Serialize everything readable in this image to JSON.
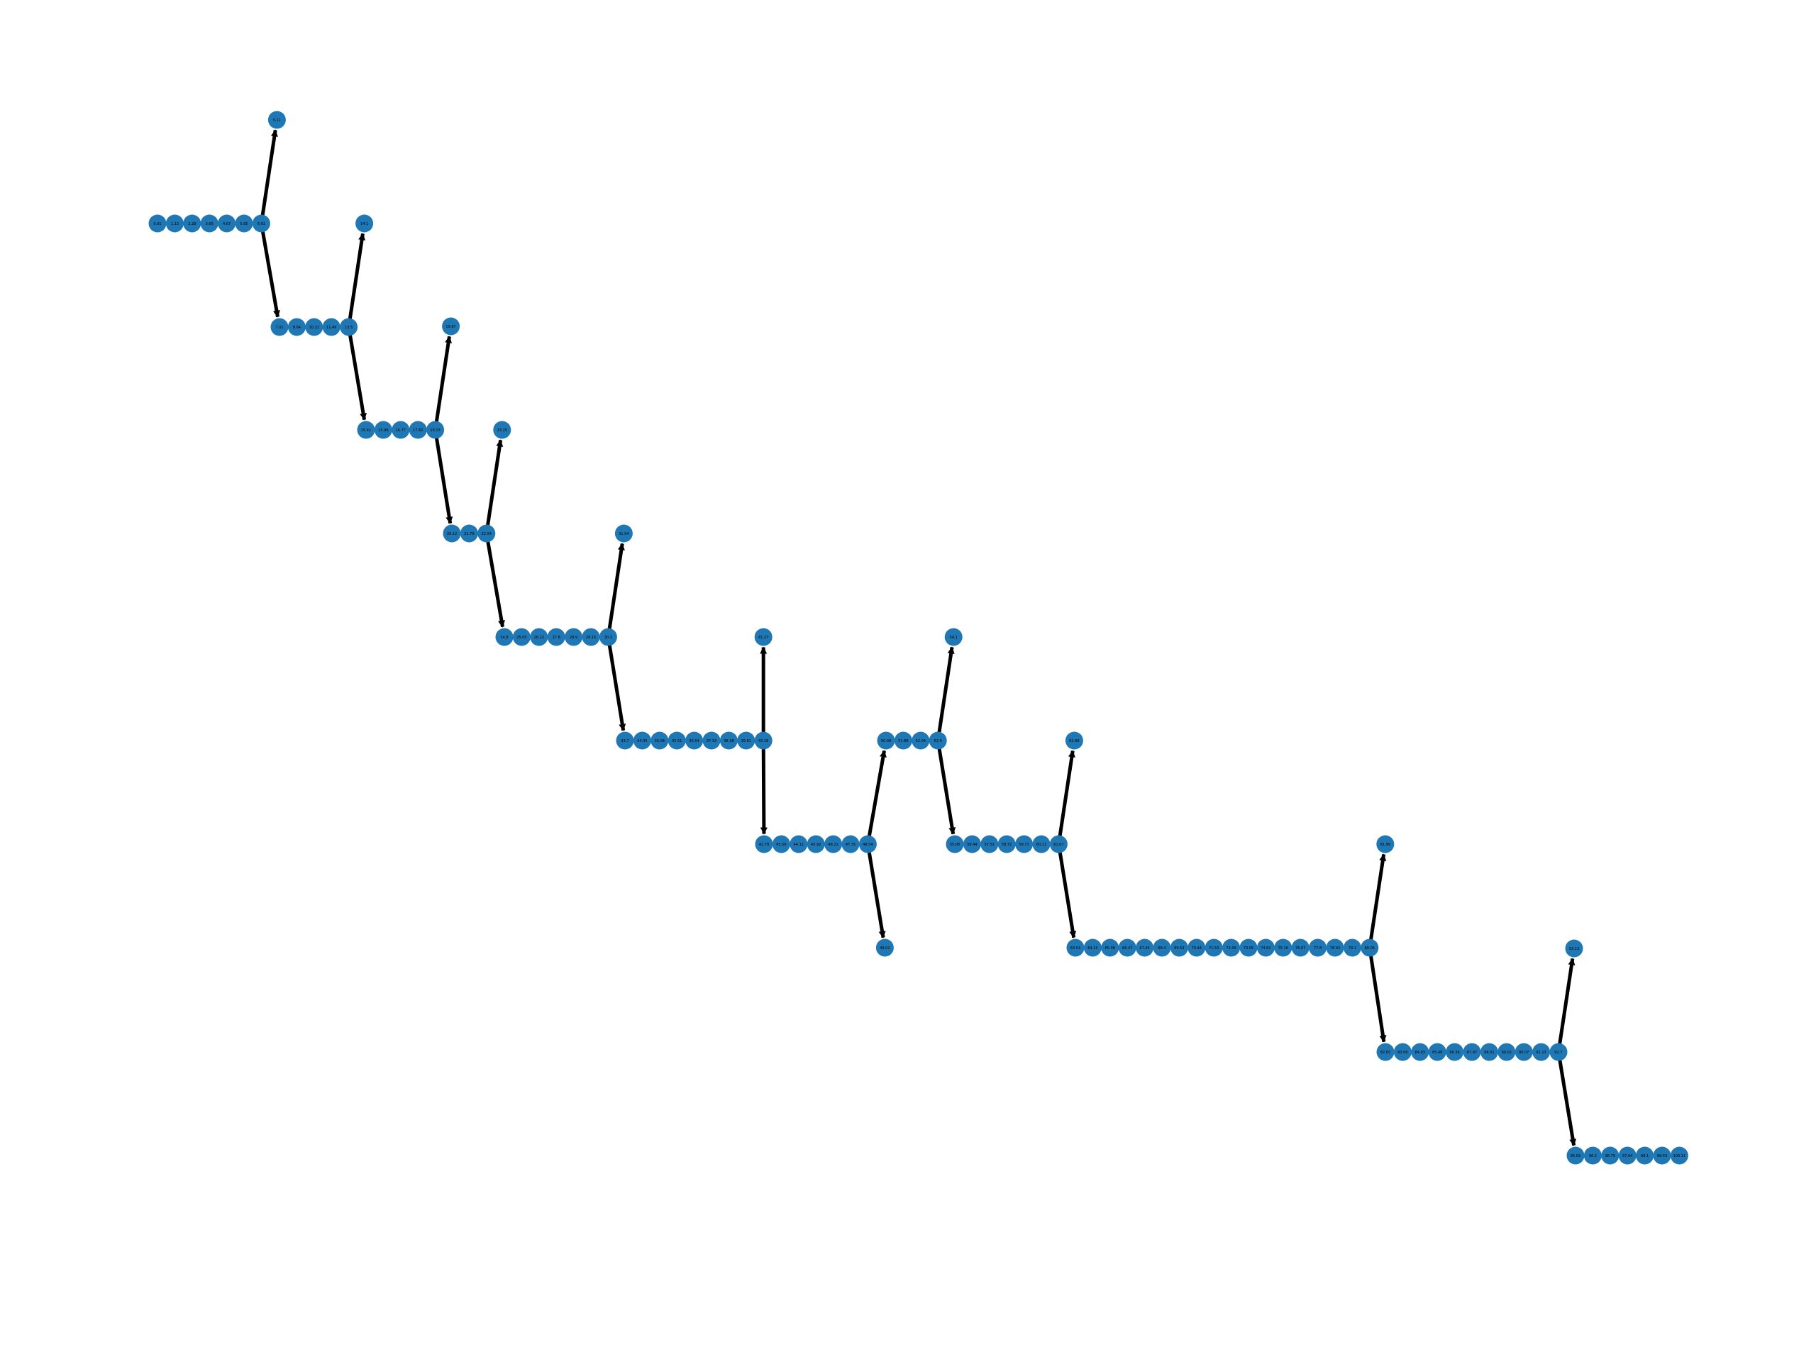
{
  "colors": {
    "node": "#1f77b4",
    "edge": "#000000",
    "background": "#ffffff"
  },
  "diagram": {
    "type": "directed graph",
    "groups": [
      {
        "id": "g1",
        "nodes": [
          "0.01",
          "1.13",
          "2.28",
          "3.65",
          "4.67",
          "5.85",
          "6.91"
        ],
        "up": "5.11",
        "down": "g2"
      },
      {
        "id": "g2",
        "nodes": [
          "7.01",
          "8.64",
          "10.22",
          "11.49",
          "13.5"
        ],
        "up": "14.1",
        "down": "g3"
      },
      {
        "id": "g3",
        "nodes": [
          "15.41",
          "15.96",
          "16.77",
          "17.82",
          "18.13"
        ],
        "up": "19.87",
        "down": "g4"
      },
      {
        "id": "g4",
        "nodes": [
          "20.12",
          "21.79",
          "22.54"
        ],
        "up": "23.25",
        "down": "g5"
      },
      {
        "id": "g5",
        "nodes": [
          "24.8",
          "25.05",
          "26.12",
          "27.8",
          "28.9",
          "29.15",
          "30.3"
        ],
        "up": "31.94",
        "down": "g6"
      },
      {
        "id": "g6",
        "nodes": [
          "33.7",
          "34.05",
          "35.08",
          "35.51",
          "36.54",
          "37.32",
          "38.38",
          "39.81",
          "40.18"
        ],
        "up": "41.27",
        "down": "g7"
      },
      {
        "id": "g7",
        "nodes": [
          "42.79",
          "43.56",
          "44.11",
          "45.92",
          "46.21",
          "47.35",
          "48.54"
        ],
        "up": "g8",
        "down": "49.02"
      },
      {
        "id": "g8",
        "nodes": [
          "50.08",
          "51.88",
          "52.04",
          "53.9"
        ],
        "up": "54.1",
        "down": "g9"
      },
      {
        "id": "g9",
        "nodes": [
          "55.08",
          "56.44",
          "57.51",
          "58.72",
          "59.71",
          "60.11",
          "61.07"
        ],
        "up": "62.68",
        "down": "g10"
      },
      {
        "id": "g10",
        "nodes": [
          "63.03",
          "64.15",
          "65.08",
          "66.47",
          "67.44",
          "68.4",
          "69.52",
          "70.44",
          "71.53",
          "72.09",
          "73.05",
          "74.82",
          "75.16",
          "76.07",
          "77.8",
          "78.93",
          "79.1",
          "80.05"
        ],
        "up": "81.99",
        "down": "g11"
      },
      {
        "id": "g11",
        "nodes": [
          "82.65",
          "83.06",
          "84.03",
          "85.48",
          "86.36",
          "87.97",
          "88.01",
          "89.02",
          "90.07",
          "91.13",
          "92.7"
        ],
        "up": "93.13",
        "down": "g12"
      },
      {
        "id": "g12",
        "nodes": [
          "95.09",
          "96.2",
          "96.79",
          "97.64",
          "98.1",
          "99.43",
          "100.11"
        ],
        "up": null,
        "down": null
      }
    ]
  }
}
